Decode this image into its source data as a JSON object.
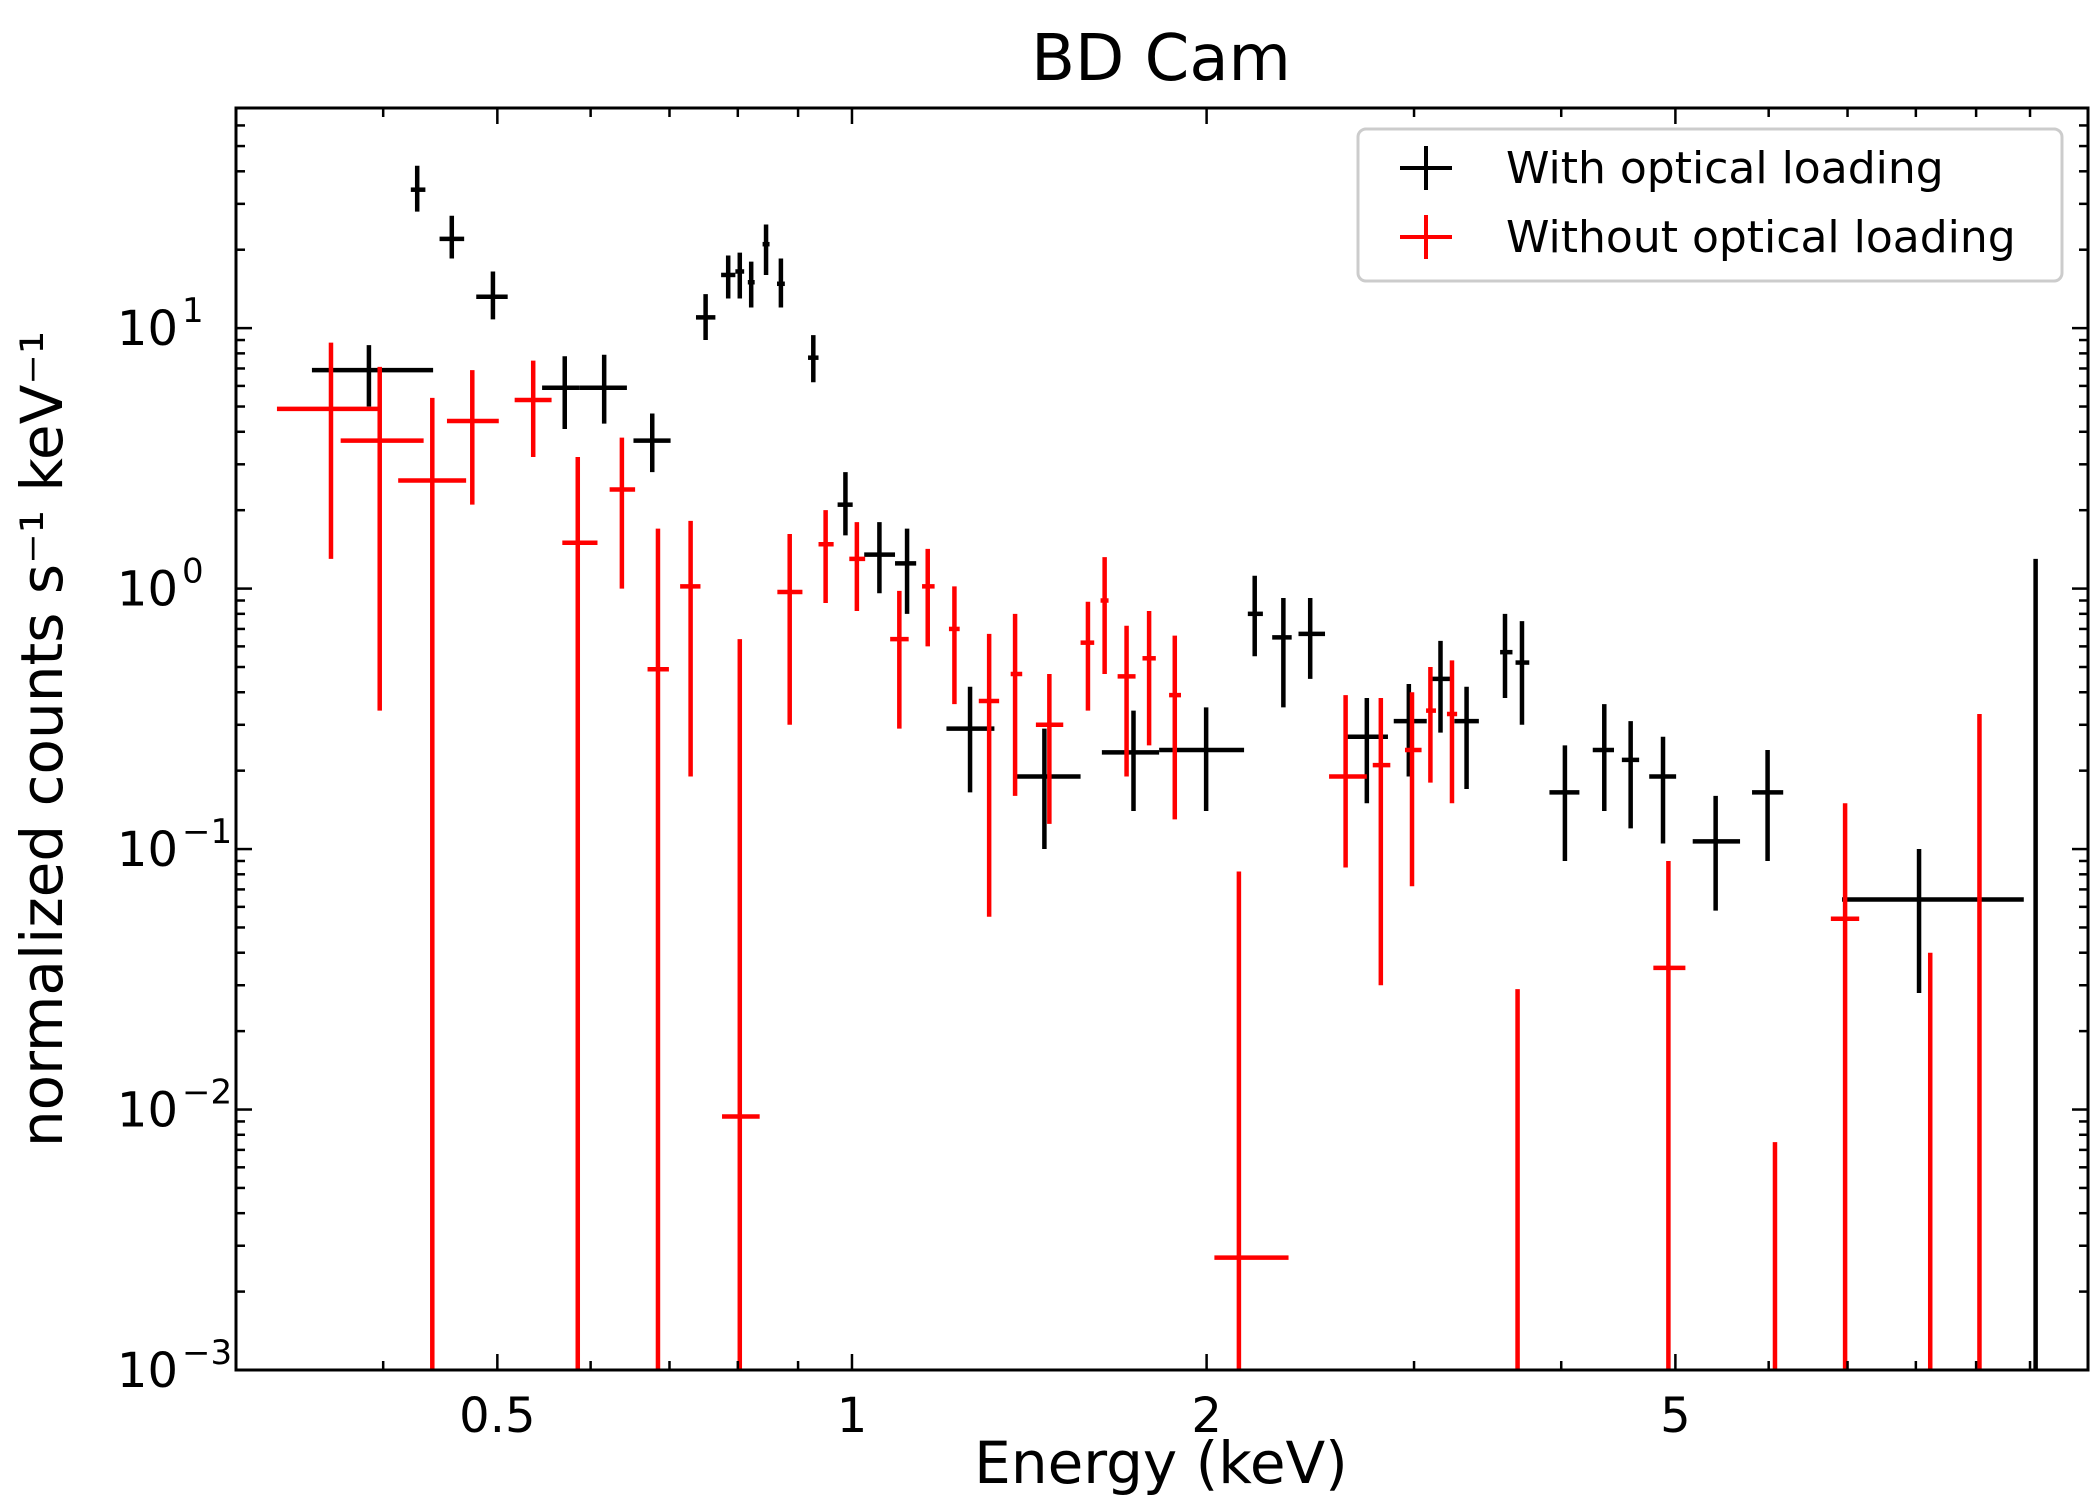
{
  "chart_data": {
    "type": "scatter",
    "title": "BD Cam",
    "xlabel": "Energy (keV)",
    "ylabel": "normalized counts s⁻¹ keV⁻¹",
    "xscale": "log",
    "yscale": "log",
    "xlim": [
      0.3,
      11.2
    ],
    "ylim": [
      0.001,
      70
    ],
    "x_ticks": [
      {
        "value": 0.5,
        "label": "0.5"
      },
      {
        "value": 1,
        "label": "1"
      },
      {
        "value": 2,
        "label": "2"
      },
      {
        "value": 5,
        "label": "5"
      }
    ],
    "y_ticks": [
      {
        "value": 10,
        "base": "10",
        "exp": "1"
      },
      {
        "value": 1,
        "base": "10",
        "exp": "0"
      },
      {
        "value": 0.1,
        "base": "10",
        "exp": "−1"
      },
      {
        "value": 0.01,
        "base": "10",
        "exp": "−2"
      },
      {
        "value": 0.001,
        "base": "10",
        "exp": "−3"
      }
    ],
    "legend_position": "top-right",
    "grid": false,
    "series": [
      {
        "name": "With optical loading",
        "color": "#000000",
        "points": [
          {
            "x": 0.389,
            "xlo": 0.348,
            "xhi": 0.441,
            "y": 6.9,
            "ylo": 5.0,
            "yhi": 8.6
          },
          {
            "x": 0.4275,
            "xlo": 0.4222,
            "xhi": 0.4344,
            "y": 34.0,
            "ylo": 28.0,
            "yhi": 42.0
          },
          {
            "x": 0.4574,
            "xlo": 0.4466,
            "xhi": 0.4686,
            "y": 22.0,
            "ylo": 18.5,
            "yhi": 27.0
          },
          {
            "x": 0.4957,
            "xlo": 0.4798,
            "xhi": 0.5102,
            "y": 13.2,
            "ylo": 10.8,
            "yhi": 16.5
          },
          {
            "x": 0.5704,
            "xlo": 0.5457,
            "xhi": 0.5875,
            "y": 5.9,
            "ylo": 4.1,
            "yhi": 7.8
          },
          {
            "x": 0.6161,
            "xlo": 0.5875,
            "xhi": 0.6441,
            "y": 5.9,
            "ylo": 4.3,
            "yhi": 7.9
          },
          {
            "x": 0.6768,
            "xlo": 0.6524,
            "xhi": 0.7015,
            "y": 3.7,
            "ylo": 2.8,
            "yhi": 4.7
          },
          {
            "x": 0.7512,
            "xlo": 0.7372,
            "xhi": 0.7657,
            "y": 11.0,
            "ylo": 9.0,
            "yhi": 13.5
          },
          {
            "x": 0.7851,
            "xlo": 0.7743,
            "xhi": 0.7962,
            "y": 16.0,
            "ylo": 13.0,
            "yhi": 19.0
          },
          {
            "x": 0.8031,
            "xlo": 0.7962,
            "xhi": 0.81,
            "y": 16.5,
            "ylo": 13.0,
            "yhi": 19.5
          },
          {
            "x": 0.8212,
            "xlo": 0.8158,
            "xhi": 0.8268,
            "y": 15.0,
            "ylo": 12.0,
            "yhi": 18.0
          },
          {
            "x": 0.8454,
            "xlo": 0.8397,
            "xhi": 0.8512,
            "y": 21.0,
            "ylo": 16.0,
            "yhi": 25.0
          },
          {
            "x": 0.8703,
            "xlo": 0.8637,
            "xhi": 0.877,
            "y": 14.8,
            "ylo": 12.0,
            "yhi": 18.5
          },
          {
            "x": 0.9272,
            "xlo": 0.9177,
            "xhi": 0.9367,
            "y": 7.7,
            "ylo": 6.2,
            "yhi": 9.4
          },
          {
            "x": 0.9873,
            "xlo": 0.9723,
            "xhi": 1.0014,
            "y": 2.1,
            "ylo": 1.6,
            "yhi": 2.8
          },
          {
            "x": 1.0551,
            "xlo": 1.0242,
            "xhi": 1.0878,
            "y": 1.35,
            "ylo": 0.96,
            "yhi": 1.8
          },
          {
            "x": 1.1137,
            "xlo": 1.0878,
            "xhi": 1.1337,
            "y": 1.25,
            "ylo": 0.8,
            "yhi": 1.7
          },
          {
            "x": 1.2596,
            "xlo": 1.2028,
            "xhi": 1.321,
            "y": 0.29,
            "ylo": 0.165,
            "yhi": 0.42
          },
          {
            "x": 1.4566,
            "xlo": 1.3755,
            "xhi": 1.5633,
            "y": 0.19,
            "ylo": 0.1,
            "yhi": 0.29
          },
          {
            "x": 1.7337,
            "xlo": 1.6298,
            "xhi": 1.8228,
            "y": 0.235,
            "ylo": 0.14,
            "yhi": 0.34
          },
          {
            "x": 1.9982,
            "xlo": 1.8228,
            "xhi": 2.152,
            "y": 0.24,
            "ylo": 0.14,
            "yhi": 0.35
          },
          {
            "x": 2.1972,
            "xlo": 2.1678,
            "xhi": 2.2326,
            "y": 0.8,
            "ylo": 0.55,
            "yhi": 1.12
          },
          {
            "x": 2.3238,
            "xlo": 2.2736,
            "xhi": 2.3618,
            "y": 0.65,
            "ylo": 0.35,
            "yhi": 0.92
          },
          {
            "x": 2.4489,
            "xlo": 2.3935,
            "xhi": 2.5209,
            "y": 0.67,
            "ylo": 0.45,
            "yhi": 0.92
          },
          {
            "x": 2.7355,
            "xlo": 2.6244,
            "xhi": 2.8509,
            "y": 0.27,
            "ylo": 0.15,
            "yhi": 0.38
          },
          {
            "x": 2.9696,
            "xlo": 2.8833,
            "xhi": 3.0754,
            "y": 0.31,
            "ylo": 0.19,
            "yhi": 0.43
          },
          {
            "x": 3.1592,
            "xlo": 3.1021,
            "xhi": 3.2222,
            "y": 0.45,
            "ylo": 0.28,
            "yhi": 0.63
          },
          {
            "x": 3.3244,
            "xlo": 3.246,
            "xhi": 3.4052,
            "y": 0.31,
            "ylo": 0.17,
            "yhi": 0.42
          },
          {
            "x": 3.5837,
            "xlo": 3.5496,
            "xhi": 3.6364,
            "y": 0.57,
            "ylo": 0.38,
            "yhi": 0.8
          },
          {
            "x": 3.7046,
            "xlo": 3.6582,
            "xhi": 3.7579,
            "y": 0.52,
            "ylo": 0.3,
            "yhi": 0.75
          },
          {
            "x": 4.0289,
            "xlo": 3.9089,
            "xhi": 4.1446,
            "y": 0.165,
            "ylo": 0.09,
            "yhi": 0.25
          },
          {
            "x": 4.3512,
            "xlo": 4.2542,
            "xhi": 4.4347,
            "y": 0.24,
            "ylo": 0.14,
            "yhi": 0.36
          },
          {
            "x": 4.5813,
            "xlo": 4.5033,
            "xhi": 4.658,
            "y": 0.22,
            "ylo": 0.12,
            "yhi": 0.31
          },
          {
            "x": 4.8805,
            "xlo": 4.7506,
            "xhi": 5.0072,
            "y": 0.19,
            "ylo": 0.105,
            "yhi": 0.27
          },
          {
            "x": 5.4093,
            "xlo": 5.1722,
            "xhi": 5.6736,
            "y": 0.107,
            "ylo": 0.058,
            "yhi": 0.16
          },
          {
            "x": 5.9873,
            "xlo": 5.8081,
            "xhi": 6.1729,
            "y": 0.165,
            "ylo": 0.09,
            "yhi": 0.24
          },
          {
            "x": 8.05,
            "xlo": 6.925,
            "xhi": 9.879,
            "y": 0.064,
            "ylo": 0.028,
            "yhi": 0.1
          },
          {
            "x": 10.11,
            "xlo": 10.074,
            "xhi": 10.146,
            "y": 0.63,
            "ylo": 0.001,
            "yhi": 1.3
          }
        ]
      },
      {
        "name": "Without optical loading",
        "color": "#ff0000",
        "points": [
          {
            "x": 0.3612,
            "xlo": 0.325,
            "xhi": 0.3983,
            "y": 4.9,
            "ylo": 1.3,
            "yhi": 8.8
          },
          {
            "x": 0.3973,
            "xlo": 0.3681,
            "xhi": 0.4329,
            "y": 3.7,
            "ylo": 0.34,
            "yhi": 7.1
          },
          {
            "x": 0.4403,
            "xlo": 0.4119,
            "xhi": 0.4704,
            "y": 2.6,
            "ylo": 0.001,
            "yhi": 5.4
          },
          {
            "x": 0.4761,
            "xlo": 0.4531,
            "xhi": 0.5014,
            "y": 4.4,
            "ylo": 2.1,
            "yhi": 6.9
          },
          {
            "x": 0.5363,
            "xlo": 0.5172,
            "xhi": 0.5559,
            "y": 5.3,
            "ylo": 3.2,
            "yhi": 7.5
          },
          {
            "x": 0.5851,
            "xlo": 0.5677,
            "xhi": 0.6081,
            "y": 1.5,
            "ylo": 0.001,
            "yhi": 3.2
          },
          {
            "x": 0.6378,
            "xlo": 0.6227,
            "xhi": 0.6545,
            "y": 2.4,
            "ylo": 1.0,
            "yhi": 3.8
          },
          {
            "x": 0.6844,
            "xlo": 0.6706,
            "xhi": 0.6992,
            "y": 0.49,
            "ylo": 0.001,
            "yhi": 1.7
          },
          {
            "x": 0.7295,
            "xlo": 0.7147,
            "xhi": 0.7437,
            "y": 1.02,
            "ylo": 0.19,
            "yhi": 1.82
          },
          {
            "x": 0.8031,
            "xlo": 0.7757,
            "xhi": 0.8349,
            "y": 0.0094,
            "ylo": 0.001,
            "yhi": 0.64
          },
          {
            "x": 0.8854,
            "xlo": 0.8643,
            "xhi": 0.9077,
            "y": 0.97,
            "ylo": 0.3,
            "yhi": 1.62
          },
          {
            "x": 0.9498,
            "xlo": 0.9367,
            "xhi": 0.9648,
            "y": 1.48,
            "ylo": 0.88,
            "yhi": 2.0
          },
          {
            "x": 1.0096,
            "xlo": 0.9948,
            "xhi": 1.0261,
            "y": 1.3,
            "ylo": 0.82,
            "yhi": 1.8
          },
          {
            "x": 1.097,
            "xlo": 1.0775,
            "xhi": 1.1172,
            "y": 0.64,
            "ylo": 0.29,
            "yhi": 0.98
          },
          {
            "x": 1.1596,
            "xlo": 1.1468,
            "xhi": 1.1753,
            "y": 1.02,
            "ylo": 0.6,
            "yhi": 1.42
          },
          {
            "x": 1.2217,
            "xlo": 1.2087,
            "xhi": 1.2343,
            "y": 0.7,
            "ylo": 0.36,
            "yhi": 1.02
          },
          {
            "x": 1.3075,
            "xlo": 1.2813,
            "xhi": 1.3333,
            "y": 0.37,
            "ylo": 0.055,
            "yhi": 0.67
          },
          {
            "x": 1.3755,
            "xlo": 1.3637,
            "xhi": 1.3948,
            "y": 0.47,
            "ylo": 0.16,
            "yhi": 0.8
          },
          {
            "x": 1.4708,
            "xlo": 1.4326,
            "xhi": 1.5113,
            "y": 0.3,
            "ylo": 0.125,
            "yhi": 0.47
          },
          {
            "x": 1.586,
            "xlo": 1.5633,
            "xhi": 1.6056,
            "y": 0.62,
            "ylo": 0.34,
            "yhi": 0.89
          },
          {
            "x": 1.6386,
            "xlo": 1.6256,
            "xhi": 1.6512,
            "y": 0.9,
            "ylo": 0.47,
            "yhi": 1.32
          },
          {
            "x": 1.7104,
            "xlo": 1.6807,
            "xhi": 1.7407,
            "y": 0.46,
            "ylo": 0.19,
            "yhi": 0.72
          },
          {
            "x": 1.7874,
            "xlo": 1.7644,
            "xhi": 1.811,
            "y": 0.54,
            "ylo": 0.25,
            "yhi": 0.82
          },
          {
            "x": 1.8794,
            "xlo": 1.8586,
            "xhi": 1.9024,
            "y": 0.39,
            "ylo": 0.13,
            "yhi": 0.66
          },
          {
            "x": 2.1303,
            "xlo": 2.0307,
            "xhi": 2.3474,
            "y": 0.0027,
            "ylo": 0.001,
            "yhi": 0.082
          },
          {
            "x": 2.6244,
            "xlo": 2.5409,
            "xhi": 2.7355,
            "y": 0.19,
            "ylo": 0.085,
            "yhi": 0.39
          },
          {
            "x": 2.8114,
            "xlo": 2.7674,
            "xhi": 2.8641,
            "y": 0.21,
            "ylo": 0.03,
            "yhi": 0.38
          },
          {
            "x": 2.9881,
            "xlo": 2.9473,
            "xhi": 3.0444,
            "y": 0.24,
            "ylo": 0.072,
            "yhi": 0.4
          },
          {
            "x": 3.0975,
            "xlo": 3.0712,
            "xhi": 3.1314,
            "y": 0.34,
            "ylo": 0.18,
            "yhi": 0.5
          },
          {
            "x": 3.2309,
            "xlo": 3.1993,
            "xhi": 3.2636,
            "y": 0.33,
            "ylo": 0.15,
            "yhi": 0.53
          },
          {
            "x": 3.6728,
            "xlo": 3.6728,
            "xhi": 3.6728,
            "y": 0.0012,
            "ylo": 0.001,
            "yhi": 0.029
          },
          {
            "x": 4.9321,
            "xlo": 4.7892,
            "xhi": 5.0987,
            "y": 0.035,
            "ylo": 0.001,
            "yhi": 0.09
          },
          {
            "x": 6.0744,
            "xlo": 6.0744,
            "xhi": 6.0744,
            "y": 0.0012,
            "ylo": 0.001,
            "yhi": 0.0075
          },
          {
            "x": 6.9667,
            "xlo": 6.7753,
            "xhi": 7.1613,
            "y": 0.054,
            "ylo": 0.001,
            "yhi": 0.15
          },
          {
            "x": 8.228,
            "xlo": 8.228,
            "xhi": 8.228,
            "y": 0.0012,
            "ylo": 0.001,
            "yhi": 0.04
          },
          {
            "x": 9.059,
            "xlo": 9.059,
            "xhi": 9.059,
            "y": 0.0012,
            "ylo": 0.001,
            "yhi": 0.33
          }
        ]
      }
    ]
  }
}
